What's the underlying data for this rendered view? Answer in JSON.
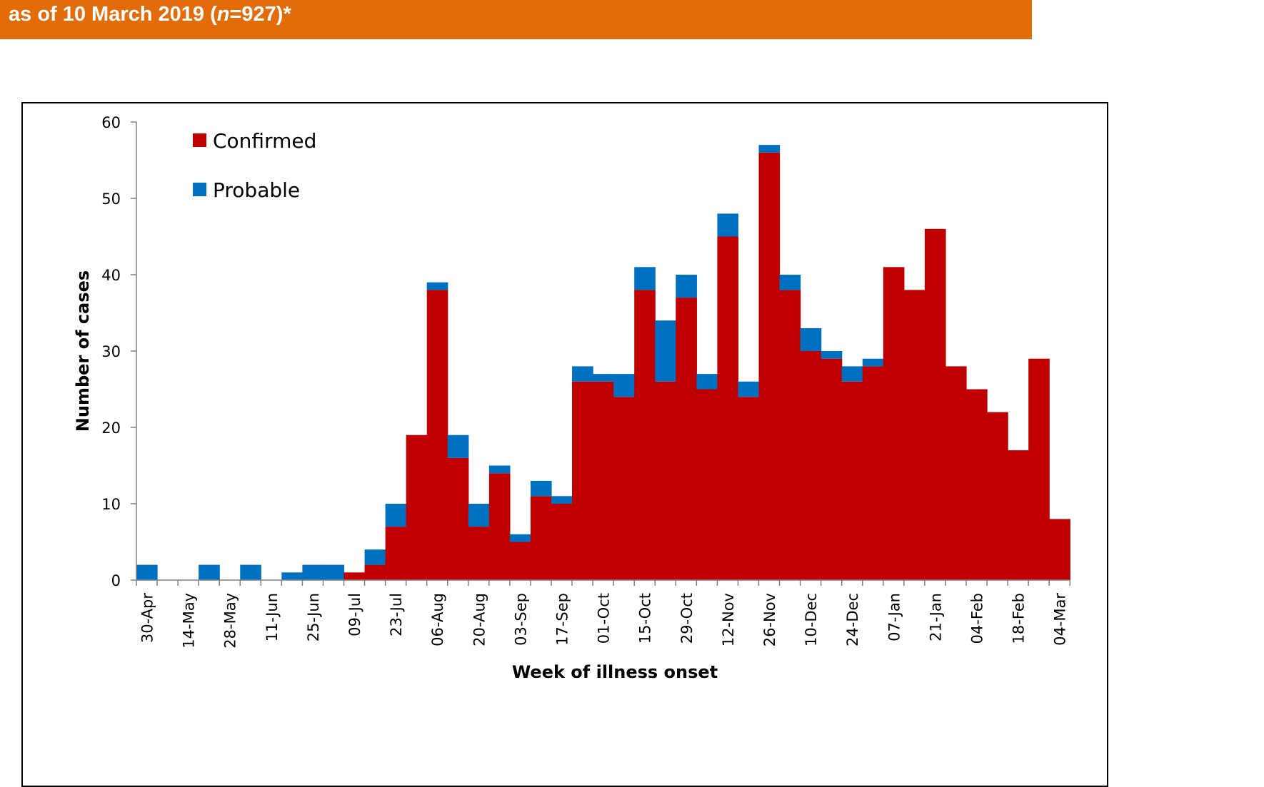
{
  "header": {
    "title_prefix": "as of 10 March 2019 (",
    "title_italic": "n",
    "title_suffix": "=927)*"
  },
  "colors": {
    "banner": "#E36C0A",
    "confirmed": "#C00000",
    "probable": "#0070C0"
  },
  "chart_data": {
    "type": "bar",
    "stacked": true,
    "xlabel": "Week of illness onset",
    "ylabel": "Number of cases",
    "ylim": [
      0,
      60
    ],
    "yticks": [
      0,
      10,
      20,
      30,
      40,
      50,
      60
    ],
    "grid": false,
    "legend_position": "top-left",
    "categories": [
      "30-Apr",
      "07-May",
      "14-May",
      "21-May",
      "28-May",
      "04-Jun",
      "11-Jun",
      "18-Jun",
      "25-Jun",
      "02-Jul",
      "09-Jul",
      "16-Jul",
      "23-Jul",
      "30-Jul",
      "06-Aug",
      "13-Aug",
      "20-Aug",
      "27-Aug",
      "03-Sep",
      "10-Sep",
      "17-Sep",
      "24-Sep",
      "01-Oct",
      "08-Oct",
      "15-Oct",
      "22-Oct",
      "29-Oct",
      "05-Nov",
      "12-Nov",
      "19-Nov",
      "26-Nov",
      "03-Dec",
      "10-Dec",
      "17-Dec",
      "24-Dec",
      "31-Dec",
      "07-Jan",
      "14-Jan",
      "21-Jan",
      "28-Jan",
      "04-Feb",
      "11-Feb",
      "18-Feb",
      "25-Feb",
      "04-Mar"
    ],
    "tick_labels": [
      "30-Apr",
      "14-May",
      "28-May",
      "11-Jun",
      "25-Jun",
      "09-Jul",
      "23-Jul",
      "06-Aug",
      "20-Aug",
      "03-Sep",
      "17-Sep",
      "01-Oct",
      "15-Oct",
      "29-Oct",
      "12-Nov",
      "26-Nov",
      "10-Dec",
      "24-Dec",
      "07-Jan",
      "21-Jan",
      "04-Feb",
      "18-Feb",
      "04-Mar"
    ],
    "series": [
      {
        "name": "Confirmed",
        "values": [
          0,
          0,
          0,
          0,
          0,
          0,
          0,
          0,
          0,
          0,
          1,
          2,
          7,
          19,
          38,
          16,
          7,
          14,
          5,
          11,
          10,
          26,
          26,
          24,
          38,
          26,
          37,
          25,
          45,
          24,
          56,
          38,
          30,
          29,
          26,
          28,
          41,
          38,
          46,
          28,
          25,
          22,
          17,
          29,
          8
        ]
      },
      {
        "name": "Probable",
        "values": [
          2,
          0,
          0,
          2,
          0,
          2,
          0,
          1,
          2,
          2,
          0,
          2,
          3,
          0,
          1,
          3,
          3,
          1,
          1,
          2,
          1,
          2,
          1,
          3,
          3,
          8,
          3,
          2,
          3,
          2,
          1,
          2,
          3,
          1,
          2,
          1,
          0,
          0,
          0,
          0,
          0,
          0,
          0,
          0,
          0
        ]
      }
    ]
  }
}
